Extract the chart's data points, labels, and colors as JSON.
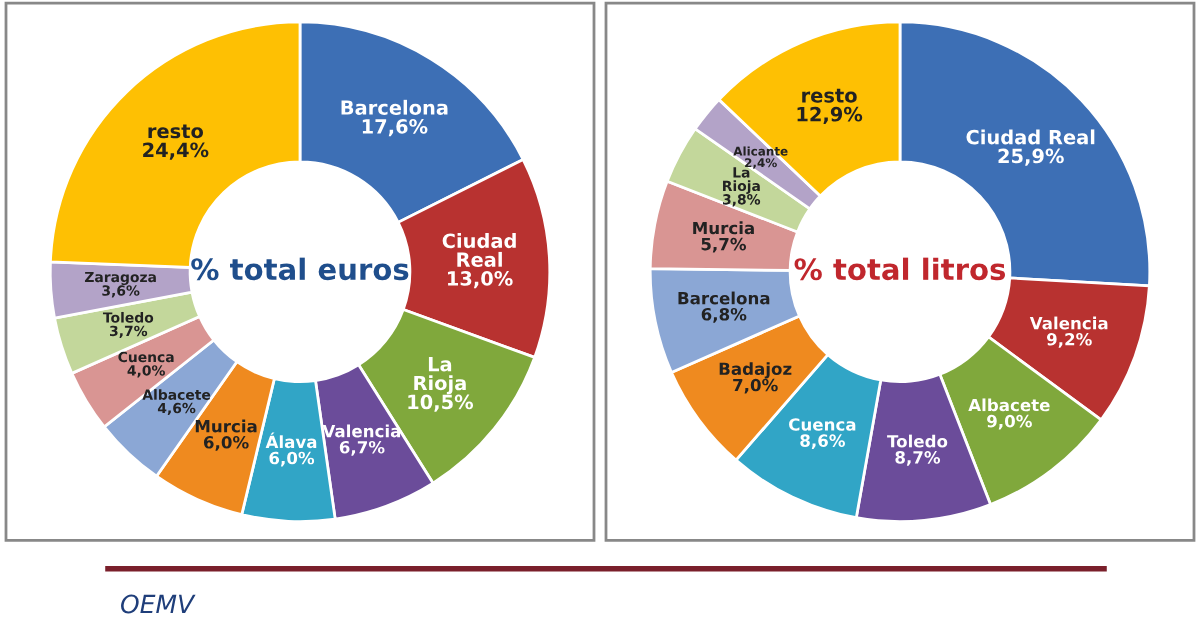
{
  "chart_data": [
    {
      "type": "donut",
      "title": "% total euros",
      "categories": [
        "Barcelona",
        "Ciudad Real",
        "La Rioja",
        "Valencia",
        "Álava",
        "Murcia",
        "Albacete",
        "Cuenca",
        "Toledo",
        "Zaragoza",
        "resto"
      ],
      "values": [
        17.6,
        13.0,
        10.5,
        6.7,
        6.0,
        6.0,
        4.6,
        4.0,
        3.7,
        3.6,
        24.4
      ],
      "value_labels": [
        "17,6%",
        "13,0%",
        "10,5%",
        "6,7%",
        "6,0%",
        "6,0%",
        "4,6%",
        "4,0%",
        "3,7%",
        "3,6%",
        "24,4%"
      ],
      "colors": [
        "#3d6fb5",
        "#b83230",
        "#80a83c",
        "#6b4c9a",
        "#31a5c6",
        "#ef8a1f",
        "#8ba7d5",
        "#d99593",
        "#c3d79b",
        "#b3a3c8",
        "#fec003"
      ],
      "annotations": [
        "OEMV"
      ]
    },
    {
      "type": "donut",
      "title": "% total litros",
      "categories": [
        "Ciudad Real",
        "Valencia",
        "Albacete",
        "Toledo",
        "Cuenca",
        "Badajoz",
        "Barcelona",
        "Murcia",
        "La Rioja",
        "Alicante",
        "resto"
      ],
      "values": [
        25.9,
        9.2,
        9.0,
        8.7,
        8.6,
        7.0,
        6.8,
        5.7,
        3.8,
        2.4,
        12.9
      ],
      "value_labels": [
        "25,9%",
        "9,2%",
        "9,0%",
        "8,7%",
        "8,6%",
        "7,0%",
        "6,8%",
        "5,7%",
        "3,8%",
        "2,4%",
        "12,9%"
      ],
      "colors": [
        "#3d6fb5",
        "#b83230",
        "#80a83c",
        "#6b4c9a",
        "#31a5c6",
        "#ef8a1f",
        "#8ba7d5",
        "#d99593",
        "#c3d79b",
        "#b3a3c8",
        "#fec003"
      ]
    }
  ]
}
